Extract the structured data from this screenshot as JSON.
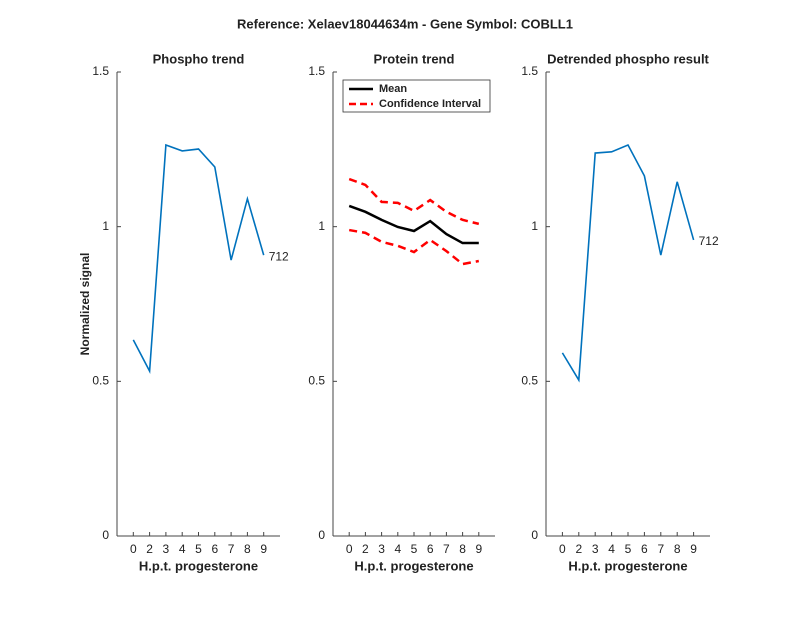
{
  "title": "Reference:  Xelaev18044634m - Gene Symbol:  COBLL1",
  "chart_data": [
    {
      "type": "line",
      "title": "Phospho trend",
      "xlabel": "H.p.t. progesterone",
      "ylabel": "Normalized signal",
      "categories": [
        "0",
        "2",
        "3",
        "4",
        "5",
        "6",
        "7",
        "8",
        "9"
      ],
      "series": [
        {
          "color": "#0072bd",
          "values": [
            0.634,
            0.533,
            1.264,
            1.245,
            1.251,
            1.193,
            0.892,
            1.09,
            0.908
          ],
          "end_label": "712"
        }
      ],
      "ylim": [
        0,
        1.5
      ],
      "yticks": [
        0,
        0.5,
        1,
        1.5
      ]
    },
    {
      "type": "line",
      "title": "Protein trend",
      "xlabel": "H.p.t. progesterone",
      "categories": [
        "0",
        "2",
        "3",
        "4",
        "5",
        "6",
        "7",
        "8",
        "9"
      ],
      "series": [
        {
          "name": "Mean",
          "color": "#000000",
          "values": [
            1.067,
            1.048,
            1.022,
            0.999,
            0.986,
            1.018,
            0.976,
            0.947,
            0.947
          ]
        },
        {
          "name": "Confidence Interval",
          "color": "#ff0000",
          "dashed": true,
          "values": [
            1.154,
            1.135,
            1.08,
            1.077,
            1.051,
            1.086,
            1.048,
            1.022,
            1.009
          ],
          "lower_values": [
            0.989,
            0.98,
            0.951,
            0.938,
            0.918,
            0.957,
            0.921,
            0.879,
            0.889
          ]
        }
      ],
      "legend": "northwest",
      "ylim": [
        0,
        1.5
      ],
      "yticks": [
        0,
        0.5,
        1,
        1.5
      ]
    },
    {
      "type": "line",
      "title": "Detrended phospho result",
      "xlabel": "H.p.t. progesterone",
      "categories": [
        "0",
        "2",
        "3",
        "4",
        "5",
        "6",
        "7",
        "8",
        "9"
      ],
      "series": [
        {
          "color": "#0072bd",
          "values": [
            0.592,
            0.504,
            1.238,
            1.242,
            1.264,
            1.164,
            0.908,
            1.145,
            0.957
          ],
          "end_label": "712"
        }
      ],
      "ylim": [
        0,
        1.5
      ],
      "yticks": [
        0,
        0.5,
        1,
        1.5
      ]
    }
  ]
}
